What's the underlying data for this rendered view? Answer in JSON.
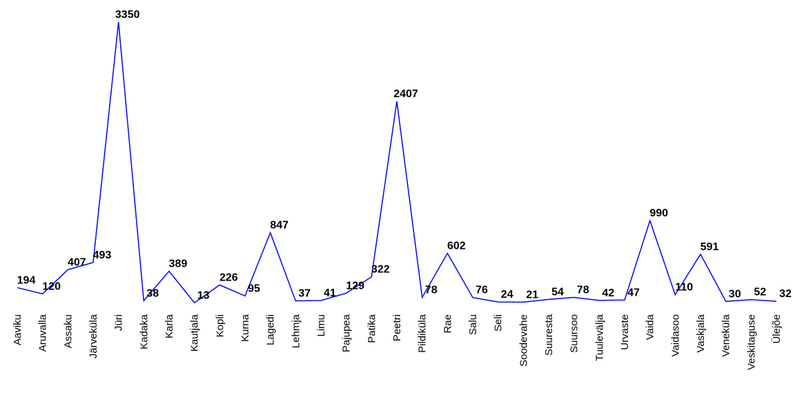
{
  "chart_data": {
    "type": "line",
    "title": "",
    "xlabel": "",
    "ylabel": "",
    "ylim": [
      0,
      3350
    ],
    "grid": false,
    "legend": "none",
    "line_color": "#0000ff",
    "label_color": "#000000",
    "categories": [
      "Aaviku",
      "Aruvalla",
      "Assaku",
      "Järveküla",
      "Jüri",
      "Kadaka",
      "Karla",
      "Kautjala",
      "Kopli",
      "Kurna",
      "Lagedi",
      "Lehmja",
      "Limu",
      "Pajupea",
      "Patika",
      "Peetri",
      "Pildiküla",
      "Rae",
      "Salu",
      "Seli",
      "Soodevahe",
      "Suuresta",
      "Suursoo",
      "Tuulevälja",
      "Urvaste",
      "Vaida",
      "Vaidasoo",
      "Vaskjala",
      "Veneküla",
      "Veskitaguse",
      "Ülejõe"
    ],
    "values": [
      194,
      120,
      407,
      493,
      3350,
      38,
      389,
      13,
      226,
      95,
      847,
      37,
      41,
      129,
      322,
      2407,
      78,
      602,
      76,
      24,
      21,
      54,
      78,
      42,
      47,
      990,
      110,
      591,
      30,
      52,
      32
    ],
    "value_labels": [
      "194",
      "120",
      "407",
      "493",
      "3350",
      "38",
      "389",
      "13",
      "226",
      "95",
      "847",
      "37",
      "41",
      "129",
      "322",
      "2407",
      "78",
      "602",
      "76",
      "24",
      "21",
      "54",
      "78",
      "42",
      "47",
      "990",
      "110",
      "591",
      "30",
      "52",
      "32"
    ]
  }
}
